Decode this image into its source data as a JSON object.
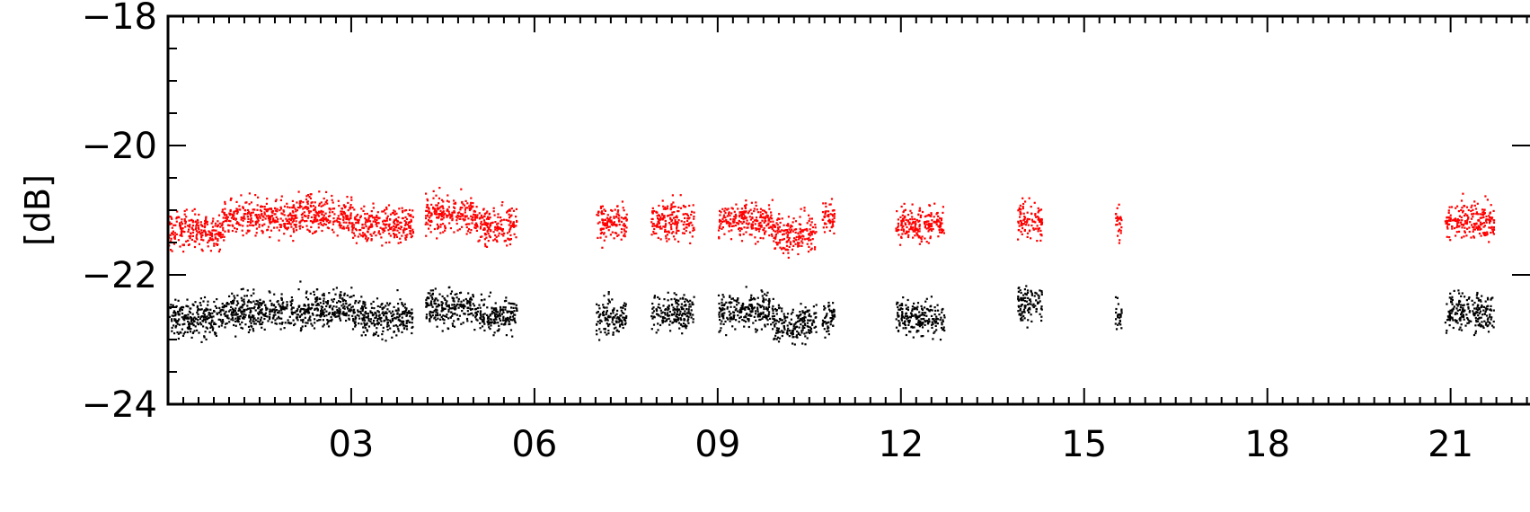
{
  "chart_data": {
    "type": "scatter",
    "title": "",
    "xlabel": "",
    "ylabel": "[dB]",
    "xlim": [
      0,
      22.3
    ],
    "ylim": [
      -24,
      -18
    ],
    "xticks": [
      3,
      6,
      9,
      12,
      15,
      18,
      21
    ],
    "xtick_labels": [
      "03",
      "06",
      "09",
      "12",
      "15",
      "18",
      "21"
    ],
    "yticks": [
      -18,
      -20,
      -22,
      -24
    ],
    "ytick_labels": [
      "−18",
      "−20",
      "−22",
      "−24"
    ],
    "grid": false,
    "legend": "none",
    "series": [
      {
        "color": "#ff0000",
        "segments": [
          {
            "x_start": 0.0,
            "x_end": 0.9,
            "y_mean": -21.3
          },
          {
            "x_start": 0.9,
            "x_end": 2.1,
            "y_mean": -21.1
          },
          {
            "x_start": 2.1,
            "x_end": 3.0,
            "y_mean": -21.05
          },
          {
            "x_start": 3.0,
            "x_end": 4.0,
            "y_mean": -21.2
          },
          {
            "x_start": 4.2,
            "x_end": 5.0,
            "y_mean": -21.05
          },
          {
            "x_start": 5.0,
            "x_end": 5.7,
            "y_mean": -21.2
          },
          {
            "x_start": 7.0,
            "x_end": 7.5,
            "y_mean": -21.2
          },
          {
            "x_start": 7.9,
            "x_end": 8.6,
            "y_mean": -21.15
          },
          {
            "x_start": 9.0,
            "x_end": 9.9,
            "y_mean": -21.15
          },
          {
            "x_start": 9.9,
            "x_end": 10.6,
            "y_mean": -21.35
          },
          {
            "x_start": 10.7,
            "x_end": 10.9,
            "y_mean": -21.1
          },
          {
            "x_start": 11.9,
            "x_end": 12.7,
            "y_mean": -21.2
          },
          {
            "x_start": 13.9,
            "x_end": 14.3,
            "y_mean": -21.15
          },
          {
            "x_start": 15.5,
            "x_end": 15.6,
            "y_mean": -21.2
          },
          {
            "x_start": 20.9,
            "x_end": 21.7,
            "y_mean": -21.15
          }
        ]
      },
      {
        "color": "#000000",
        "segments": [
          {
            "x_start": 0.0,
            "x_end": 0.9,
            "y_mean": -22.65
          },
          {
            "x_start": 0.9,
            "x_end": 2.1,
            "y_mean": -22.55
          },
          {
            "x_start": 2.1,
            "x_end": 3.0,
            "y_mean": -22.5
          },
          {
            "x_start": 3.0,
            "x_end": 4.0,
            "y_mean": -22.65
          },
          {
            "x_start": 4.2,
            "x_end": 5.0,
            "y_mean": -22.5
          },
          {
            "x_start": 5.0,
            "x_end": 5.7,
            "y_mean": -22.6
          },
          {
            "x_start": 7.0,
            "x_end": 7.5,
            "y_mean": -22.65
          },
          {
            "x_start": 7.9,
            "x_end": 8.6,
            "y_mean": -22.55
          },
          {
            "x_start": 9.0,
            "x_end": 9.9,
            "y_mean": -22.55
          },
          {
            "x_start": 9.9,
            "x_end": 10.6,
            "y_mean": -22.75
          },
          {
            "x_start": 10.7,
            "x_end": 10.9,
            "y_mean": -22.6
          },
          {
            "x_start": 11.9,
            "x_end": 12.7,
            "y_mean": -22.65
          },
          {
            "x_start": 13.9,
            "x_end": 14.3,
            "y_mean": -22.45
          },
          {
            "x_start": 15.5,
            "x_end": 15.6,
            "y_mean": -22.6
          },
          {
            "x_start": 20.9,
            "x_end": 21.7,
            "y_mean": -22.55
          }
        ]
      }
    ]
  }
}
